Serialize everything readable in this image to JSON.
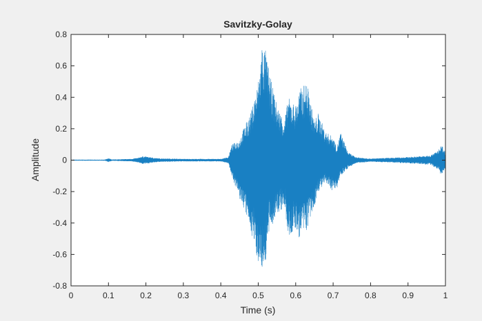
{
  "chart_data": {
    "type": "line",
    "title": "Savitzky-Golay",
    "xlabel": "Time (s)",
    "ylabel": "Amplitude",
    "xlim": [
      0,
      1
    ],
    "ylim": [
      -0.8,
      0.8
    ],
    "xticks": [
      0,
      0.1,
      0.2,
      0.3,
      0.4,
      0.5,
      0.6,
      0.7,
      0.8,
      0.9,
      1
    ],
    "xtick_labels": [
      "0",
      "0.1",
      "0.2",
      "0.3",
      "0.4",
      "0.5",
      "0.6",
      "0.7",
      "0.8",
      "0.9",
      "1"
    ],
    "yticks": [
      -0.8,
      -0.6,
      -0.4,
      -0.2,
      0,
      0.2,
      0.4,
      0.6,
      0.8
    ],
    "ytick_labels": [
      "-0.8",
      "-0.6",
      "-0.4",
      "-0.2",
      "0",
      "0.2",
      "0.4",
      "0.6",
      "0.8"
    ],
    "grid": false,
    "line_color": "#0072bd",
    "series": [
      {
        "envelope_time": [
          0,
          0.09,
          0.1,
          0.11,
          0.16,
          0.18,
          0.19,
          0.21,
          0.23,
          0.3,
          0.4,
          0.42,
          0.43,
          0.45,
          0.46,
          0.48,
          0.5,
          0.51,
          0.52,
          0.53,
          0.55,
          0.57,
          0.58,
          0.6,
          0.61,
          0.63,
          0.65,
          0.66,
          0.68,
          0.7,
          0.71,
          0.72,
          0.74,
          0.76,
          0.8,
          0.9,
          0.96,
          0.98,
          0.99,
          1.0
        ],
        "envelope_max": [
          0.003,
          0.003,
          0.012,
          0.004,
          0.008,
          0.015,
          0.025,
          0.02,
          0.012,
          0.008,
          0.008,
          0.02,
          0.1,
          0.13,
          0.2,
          0.3,
          0.5,
          0.75,
          0.7,
          0.55,
          0.35,
          0.25,
          0.4,
          0.35,
          0.45,
          0.5,
          0.25,
          0.3,
          0.18,
          0.15,
          0.08,
          0.18,
          0.05,
          0.02,
          0.01,
          0.02,
          0.03,
          0.06,
          0.1,
          0.05
        ],
        "envelope_min": [
          -0.003,
          -0.003,
          -0.012,
          -0.004,
          -0.008,
          -0.015,
          -0.025,
          -0.02,
          -0.012,
          -0.008,
          -0.008,
          -0.02,
          -0.1,
          -0.25,
          -0.3,
          -0.45,
          -0.65,
          -0.7,
          -0.65,
          -0.45,
          -0.35,
          -0.3,
          -0.5,
          -0.45,
          -0.5,
          -0.45,
          -0.3,
          -0.2,
          -0.15,
          -0.2,
          -0.18,
          -0.1,
          -0.05,
          -0.02,
          -0.01,
          -0.02,
          -0.03,
          -0.06,
          -0.1,
          -0.05
        ]
      }
    ]
  }
}
